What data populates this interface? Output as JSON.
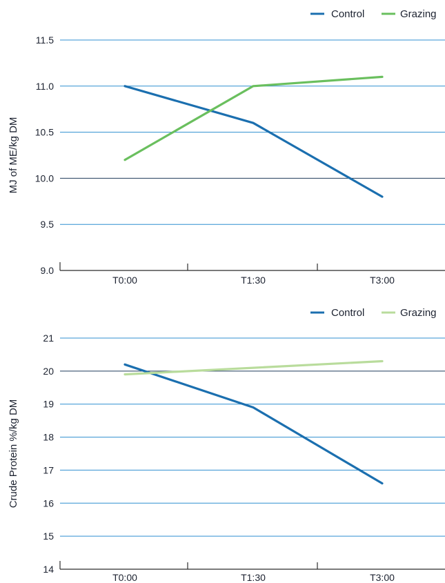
{
  "colors": {
    "control": "#1b6faf",
    "grazing_top": "#6abf5e",
    "grazing_bottom": "#b9dc9c",
    "gridline": "#2f8fd0",
    "reference_line": "#1e3a5a",
    "axis": "#2b2b2b"
  },
  "chart_data": [
    {
      "type": "line",
      "title": "",
      "xlabel": "",
      "ylabel": "MJ of ME/kg DM",
      "categories": [
        "T0:00",
        "T1:30",
        "T3:00"
      ],
      "ylim": [
        9.0,
        11.5
      ],
      "yticks": [
        "9.0",
        "9.5",
        "10.0",
        "10.5",
        "11.0",
        "11.5"
      ],
      "grid": true,
      "legend_position": "top-right",
      "series": [
        {
          "name": "Control",
          "values": [
            11.0,
            10.6,
            9.8
          ],
          "color": "#1b6faf"
        },
        {
          "name": "Grazing",
          "values": [
            10.2,
            11.0,
            11.1
          ],
          "color": "#6abf5e"
        }
      ]
    },
    {
      "type": "line",
      "title": "",
      "xlabel": "",
      "ylabel": "Crude Protein %/kg DM",
      "categories": [
        "T0:00",
        "T1:30",
        "T3:00"
      ],
      "ylim": [
        14,
        21
      ],
      "yticks": [
        "14",
        "15",
        "16",
        "17",
        "18",
        "19",
        "20",
        "21"
      ],
      "grid": true,
      "legend_position": "top-right",
      "series": [
        {
          "name": "Control",
          "values": [
            20.2,
            18.9,
            16.6
          ],
          "color": "#1b6faf"
        },
        {
          "name": "Grazing",
          "values": [
            19.9,
            20.1,
            20.3
          ],
          "color": "#b9dc9c"
        }
      ]
    }
  ]
}
